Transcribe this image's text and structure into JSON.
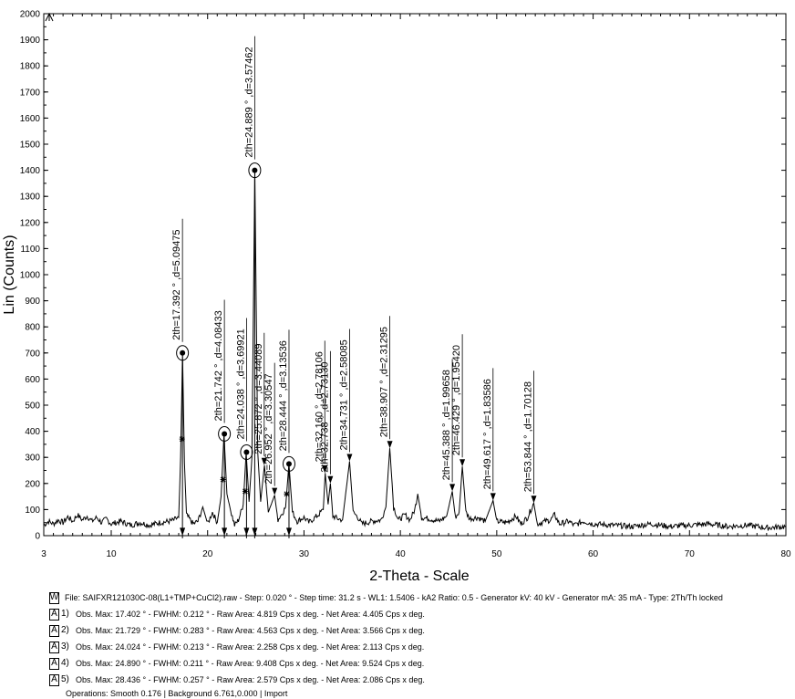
{
  "chart_data": {
    "type": "line",
    "ylabel": "Lin (Counts)",
    "xlabel": "2-Theta - Scale",
    "xlim": [
      3,
      80
    ],
    "ylim": [
      0,
      2000
    ],
    "x_ticks": [
      3,
      10,
      20,
      30,
      40,
      50,
      60,
      70,
      80
    ],
    "y_ticks": [
      0,
      100,
      200,
      300,
      400,
      500,
      600,
      700,
      800,
      900,
      1000,
      1100,
      1200,
      1300,
      1400,
      1500,
      1600,
      1700,
      1800,
      1900,
      2000
    ],
    "pattern": {
      "baseline": 50,
      "points": [
        [
          3,
          40
        ],
        [
          3.5,
          55
        ],
        [
          4,
          45
        ],
        [
          4.5,
          60
        ],
        [
          5,
          50
        ],
        [
          5.5,
          72
        ],
        [
          6,
          55
        ],
        [
          6.5,
          80
        ],
        [
          7,
          60
        ],
        [
          7.5,
          75
        ],
        [
          8,
          55
        ],
        [
          8.5,
          70
        ],
        [
          9,
          50
        ],
        [
          9.5,
          65
        ],
        [
          10,
          45
        ],
        [
          11,
          55
        ],
        [
          12,
          40
        ],
        [
          13,
          50
        ],
        [
          14,
          40
        ],
        [
          15,
          50
        ],
        [
          16,
          55
        ],
        [
          16.5,
          60
        ],
        [
          17,
          70
        ],
        [
          17.2,
          300
        ],
        [
          17.4,
          700
        ],
        [
          17.6,
          280
        ],
        [
          17.8,
          80
        ],
        [
          18.5,
          45
        ],
        [
          19,
          55
        ],
        [
          19.5,
          110
        ],
        [
          20,
          45
        ],
        [
          20.5,
          90
        ],
        [
          21,
          50
        ],
        [
          21.4,
          150
        ],
        [
          21.7,
          390
        ],
        [
          22,
          160
        ],
        [
          22.4,
          95
        ],
        [
          22.8,
          40
        ],
        [
          23.2,
          60
        ],
        [
          23.7,
          120
        ],
        [
          24,
          320
        ],
        [
          24.3,
          130
        ],
        [
          24.6,
          300
        ],
        [
          24.9,
          1400
        ],
        [
          25.2,
          320
        ],
        [
          25.5,
          130
        ],
        [
          25.9,
          270
        ],
        [
          26.3,
          90
        ],
        [
          26.95,
          155
        ],
        [
          27.3,
          60
        ],
        [
          27.8,
          90
        ],
        [
          28.1,
          110
        ],
        [
          28.44,
          275
        ],
        [
          28.8,
          90
        ],
        [
          29.3,
          55
        ],
        [
          30,
          70
        ],
        [
          30.5,
          50
        ],
        [
          31,
          65
        ],
        [
          31.5,
          80
        ],
        [
          32,
          100
        ],
        [
          32.2,
          240
        ],
        [
          32.5,
          120
        ],
        [
          32.74,
          200
        ],
        [
          33,
          75
        ],
        [
          33.5,
          65
        ],
        [
          34,
          60
        ],
        [
          34.73,
          285
        ],
        [
          35.1,
          90
        ],
        [
          35.6,
          70
        ],
        [
          36,
          45
        ],
        [
          37,
          55
        ],
        [
          38,
          60
        ],
        [
          38.5,
          110
        ],
        [
          38.9,
          335
        ],
        [
          39.3,
          110
        ],
        [
          39.8,
          60
        ],
        [
          40.5,
          80
        ],
        [
          41,
          60
        ],
        [
          41.5,
          100
        ],
        [
          41.8,
          160
        ],
        [
          42.2,
          70
        ],
        [
          43,
          65
        ],
        [
          44,
          55
        ],
        [
          44.8,
          75
        ],
        [
          45.39,
          170
        ],
        [
          45.7,
          70
        ],
        [
          46.1,
          90
        ],
        [
          46.43,
          265
        ],
        [
          46.8,
          90
        ],
        [
          47.2,
          65
        ],
        [
          48,
          70
        ],
        [
          48.8,
          55
        ],
        [
          49.62,
          135
        ],
        [
          50,
          55
        ],
        [
          51,
          50
        ],
        [
          52,
          75
        ],
        [
          52.5,
          45
        ],
        [
          53.2,
          70
        ],
        [
          53.84,
          125
        ],
        [
          54.2,
          45
        ],
        [
          55,
          55
        ],
        [
          55.6,
          60
        ],
        [
          56,
          80
        ],
        [
          56.5,
          45
        ],
        [
          57.5,
          55
        ],
        [
          58,
          40
        ],
        [
          59,
          55
        ],
        [
          60,
          45
        ],
        [
          62,
          40
        ],
        [
          64,
          35
        ],
        [
          66,
          45
        ],
        [
          68,
          35
        ],
        [
          70,
          40
        ],
        [
          72,
          45
        ],
        [
          74,
          35
        ],
        [
          76,
          40
        ],
        [
          78,
          30
        ],
        [
          80,
          35
        ]
      ]
    },
    "peaks": [
      {
        "x": 17.392,
        "y": 700,
        "label": "2th=17.392 ° ,d=5.09475",
        "circled": true
      },
      {
        "x": 21.742,
        "y": 390,
        "label": "2th=21.742 ° ,d=4.08433",
        "circled": true
      },
      {
        "x": 24.038,
        "y": 320,
        "label": "2th=24.038 ° ,d=3.69921",
        "circled": true
      },
      {
        "x": 24.889,
        "y": 1400,
        "label": "2th=24.889 ° ,d=3.57462",
        "circled": true
      },
      {
        "x": 25.872,
        "y": 270,
        "label": "2th=25.872 ° ,d=3.44089",
        "circled": false
      },
      {
        "x": 26.952,
        "y": 155,
        "label": "2th=26.952 ° ,d=3.30547",
        "circled": false
      },
      {
        "x": 28.444,
        "y": 275,
        "label": "2th=28.444 ° ,d=3.13536",
        "circled": true
      },
      {
        "x": 32.16,
        "y": 240,
        "label": "2th=32.160 ° ,d=2.78106",
        "circled": false
      },
      {
        "x": 32.738,
        "y": 200,
        "label": "2th=32.738 ° ,d=2.73130",
        "circled": false
      },
      {
        "x": 34.731,
        "y": 285,
        "label": "2th=34.731 ° ,d=2.58085",
        "circled": false
      },
      {
        "x": 38.907,
        "y": 335,
        "label": "2th=38.907 ° ,d=2.31295",
        "circled": false
      },
      {
        "x": 45.388,
        "y": 170,
        "label": "2th=45.388 ° ,d=1.99658",
        "circled": false
      },
      {
        "x": 46.429,
        "y": 265,
        "label": "2th=46.429 ° ,d=1.95420",
        "circled": false
      },
      {
        "x": 49.617,
        "y": 135,
        "label": "2th=49.617 ° ,d=1.83586",
        "circled": false
      },
      {
        "x": 53.844,
        "y": 125,
        "label": "2th=53.844 ° ,d=1.70128",
        "circled": false
      }
    ],
    "half_max_markers": [
      [
        17.35,
        370
      ],
      [
        21.6,
        215
      ],
      [
        23.9,
        170
      ],
      [
        28.2,
        160
      ]
    ]
  },
  "legend": {
    "file_badge": "W",
    "file_line": "File: SAIFXR121030C-08(L1+TMP+CuCl2).raw - Step: 0.020 ° - Step time: 31.2 s - WL1: 1.5406 - kA2 Ratio: 0.5 - Generator kV: 40 kV - Generator mA: 35 mA - Type: 2Th/Th locked",
    "rows": [
      {
        "badge": "A",
        "num": "1)",
        "text": "Obs. Max: 17.402 ° - FWHM: 0.212 ° - Raw Area: 4.819 Cps x deg. - Net Area: 4.405 Cps x deg."
      },
      {
        "badge": "A",
        "num": "2)",
        "text": "Obs. Max: 21.729 ° - FWHM: 0.283 ° - Raw Area: 4.563 Cps x deg. - Net Area: 3.566 Cps x deg."
      },
      {
        "badge": "A",
        "num": "3)",
        "text": "Obs. Max: 24.024 ° - FWHM: 0.213 ° - Raw Area: 2.258 Cps x deg. - Net Area: 2.113 Cps x deg."
      },
      {
        "badge": "A",
        "num": "4)",
        "text": "Obs. Max: 24.890 ° - FWHM: 0.211 ° - Raw Area: 9.408 Cps x deg. - Net Area: 9.524 Cps x deg."
      },
      {
        "badge": "A",
        "num": "5)",
        "text": "Obs. Max: 28.436 ° - FWHM: 0.257 ° - Raw Area: 2.579 Cps x deg. - Net Area: 2.086 Cps x deg."
      }
    ],
    "operations": "Operations: Smooth 0.176 | Background 6.761,0.000 | Import"
  }
}
